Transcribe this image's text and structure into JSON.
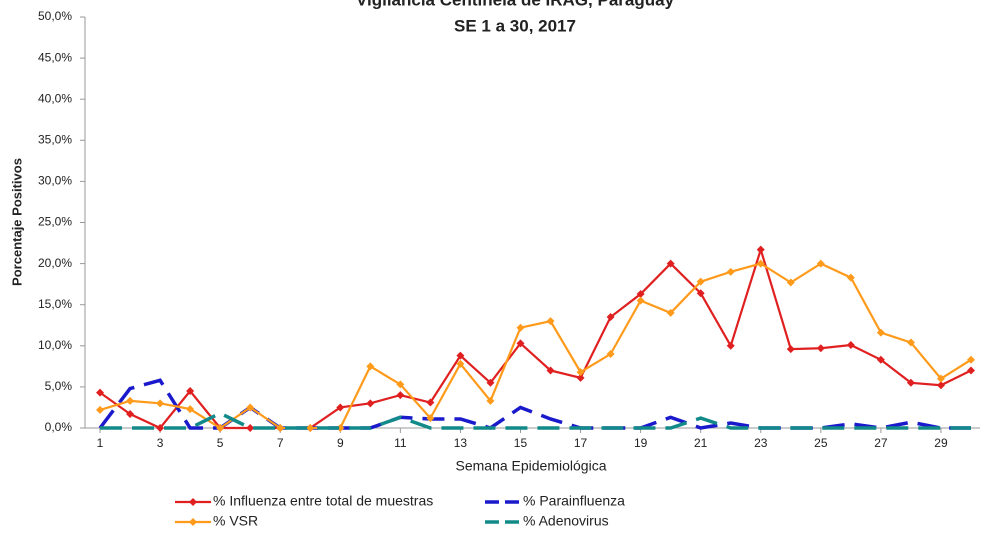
{
  "chart_data": {
    "type": "line",
    "title": "Vigilancia Centinela de IRAG, Paraguay",
    "subtitle": "SE 1 a 30, 2017",
    "x_label": "Semana Epidemiológica",
    "y_label": "Porcentaje Positivos",
    "x": [
      1,
      2,
      3,
      4,
      5,
      6,
      7,
      8,
      9,
      10,
      11,
      12,
      13,
      14,
      15,
      16,
      17,
      18,
      19,
      20,
      21,
      22,
      23,
      24,
      25,
      26,
      27,
      28,
      29,
      30
    ],
    "xlim": [
      0.5,
      30.3
    ],
    "xticks": [
      1,
      3,
      5,
      7,
      9,
      11,
      13,
      15,
      17,
      19,
      21,
      23,
      25,
      27,
      29
    ],
    "ylim": [
      0,
      50
    ],
    "yticks": [
      {
        "value": 0,
        "label": "0,0%"
      },
      {
        "value": 5,
        "label": "5,0%"
      },
      {
        "value": 10,
        "label": "10,0%"
      },
      {
        "value": 15,
        "label": "15,0%"
      },
      {
        "value": 20,
        "label": "20,0%"
      },
      {
        "value": 25,
        "label": "25,0%"
      },
      {
        "value": 30,
        "label": "30,0%"
      },
      {
        "value": 35,
        "label": "35,0%"
      },
      {
        "value": 40,
        "label": "40,0%"
      },
      {
        "value": 45,
        "label": "45,0%"
      },
      {
        "value": 50,
        "label": "50,0%"
      }
    ],
    "grid": false,
    "series": [
      {
        "name": "% Influenza entre total de muestras",
        "color": "#e02020",
        "marker": "diamond",
        "dashed": false,
        "values": [
          4.3,
          1.7,
          0,
          4.5,
          0,
          0,
          0,
          0,
          2.5,
          3.0,
          4.0,
          3.1,
          8.8,
          5.5,
          10.3,
          7.0,
          6.1,
          13.5,
          16.3,
          20.0,
          16.4,
          10.0,
          21.7,
          9.6,
          9.7,
          10.1,
          8.3,
          5.5,
          5.2,
          7.0
        ]
      },
      {
        "name": "% Parainfluenza",
        "color": "#1a1acc",
        "marker": "none",
        "dashed": true,
        "values": [
          0,
          4.8,
          5.8,
          0,
          0,
          2.5,
          0,
          0,
          0,
          0,
          1.3,
          1.1,
          1.1,
          0,
          2.5,
          1.1,
          0,
          0,
          0,
          1.3,
          0,
          0.6,
          0,
          0,
          0,
          0.5,
          0,
          0.7,
          0,
          0
        ]
      },
      {
        "name": "% VSR",
        "color": "#ff9a1a",
        "marker": "diamond",
        "dashed": false,
        "values": [
          2.2,
          3.3,
          3.0,
          2.3,
          0,
          2.5,
          0,
          0,
          0,
          7.5,
          5.3,
          1.2,
          7.8,
          3.3,
          12.2,
          13.0,
          6.8,
          9.0,
          15.5,
          14.0,
          17.8,
          19.0,
          20.0,
          17.7,
          20.0,
          18.3,
          11.6,
          10.4,
          6.0,
          8.3
        ]
      },
      {
        "name": "% Adenovirus",
        "color": "#138a8a",
        "marker": "none",
        "dashed": true,
        "values": [
          0,
          0,
          0,
          0,
          1.8,
          0,
          0,
          0,
          0,
          0,
          1.3,
          0,
          0,
          0,
          0,
          0,
          0,
          0,
          0,
          0,
          1.2,
          0,
          0,
          0,
          0,
          0,
          0,
          0,
          0,
          0
        ]
      }
    ]
  }
}
